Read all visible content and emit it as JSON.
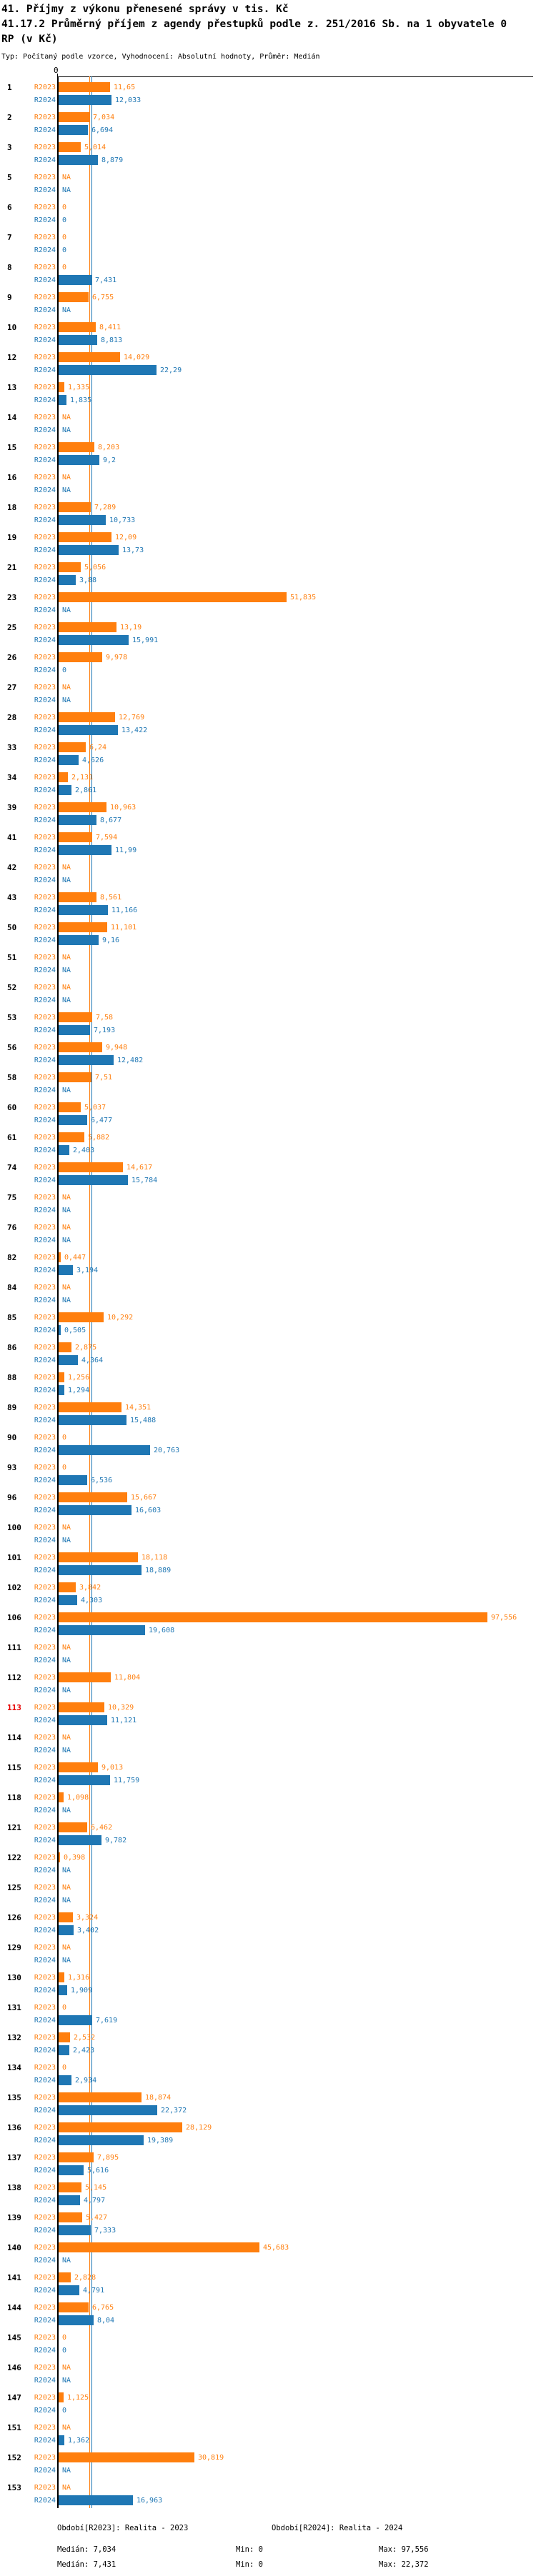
{
  "header": {
    "title_line1": "41. Příjmy z výkonu přenesené správy v tis. Kč",
    "title_line2": "41.17.2 Průměrný příjem z agendy přestupků podle z. 251/2016 Sb. na 1 obyvatele 0",
    "title_line3": "RP (v Kč)",
    "meta_line": "Typ: Počítaný podle vzorce, Vyhodnocení: Absolutní hodnoty, Průměr: Medián"
  },
  "colors": {
    "orange_2023": "#ff7f0e",
    "blue_2024": "#1f77b4",
    "highlight_red": "#e60000",
    "axis_black": "#000000"
  },
  "chart_data": {
    "type": "bar",
    "orientation": "horizontal",
    "title": "41.17.2 Průměrný příjem z agendy přestupků podle z. 251/2016 Sb. na 1 obyvatele 0 RP (v Kč)",
    "decimal_format": "czech-comma",
    "na_text": "NA",
    "axis": {
      "zero_tick_label": "0",
      "range": [
        0,
        108
      ],
      "grid": false
    },
    "legend_position": "bottom",
    "series_meta": [
      {
        "key": "R2023",
        "label": "R2023",
        "color": "#ff7f0e",
        "legend_label": "Období[R2023]: Realita - 2023"
      },
      {
        "key": "R2024",
        "label": "R2024",
        "color": "#1f77b4",
        "legend_label": "Období[R2024]: Realita - 2024"
      }
    ],
    "stats": {
      "R2023": {
        "median_label": "Medián: 7,034",
        "min_label": "Min: 0",
        "max_label": "Max: 97,556",
        "median_value": 7.034
      },
      "R2024": {
        "median_label": "Medián: 7,431",
        "min_label": "Min: 0",
        "max_label": "Max: 22,372",
        "median_value": 7.431
      }
    },
    "groups": [
      {
        "id": "1",
        "R2023": "11,65",
        "R2024": "12,033"
      },
      {
        "id": "2",
        "R2023": "7,034",
        "R2024": "6,694"
      },
      {
        "id": "3",
        "R2023": "5,014",
        "R2024": "8,879"
      },
      {
        "id": "5",
        "R2023": "NA",
        "R2024": "NA"
      },
      {
        "id": "6",
        "R2023": "0",
        "R2024": "0"
      },
      {
        "id": "7",
        "R2023": "0",
        "R2024": "0"
      },
      {
        "id": "8",
        "R2023": "0",
        "R2024": "7,431"
      },
      {
        "id": "9",
        "R2023": "6,755",
        "R2024": "NA"
      },
      {
        "id": "10",
        "R2023": "8,411",
        "R2024": "8,813"
      },
      {
        "id": "12",
        "R2023": "14,029",
        "R2024": "22,29"
      },
      {
        "id": "13",
        "R2023": "1,335",
        "R2024": "1,835"
      },
      {
        "id": "14",
        "R2023": "NA",
        "R2024": "NA"
      },
      {
        "id": "15",
        "R2023": "8,203",
        "R2024": "9,2"
      },
      {
        "id": "16",
        "R2023": "NA",
        "R2024": "NA"
      },
      {
        "id": "18",
        "R2023": "7,289",
        "R2024": "10,733"
      },
      {
        "id": "19",
        "R2023": "12,09",
        "R2024": "13,73"
      },
      {
        "id": "21",
        "R2023": "5,056",
        "R2024": "3,88"
      },
      {
        "id": "23",
        "R2023": "51,835",
        "R2024": "NA"
      },
      {
        "id": "25",
        "R2023": "13,19",
        "R2024": "15,991"
      },
      {
        "id": "26",
        "R2023": "9,978",
        "R2024": "0"
      },
      {
        "id": "27",
        "R2023": "NA",
        "R2024": "NA"
      },
      {
        "id": "28",
        "R2023": "12,769",
        "R2024": "13,422"
      },
      {
        "id": "33",
        "R2023": "6,24",
        "R2024": "4,626"
      },
      {
        "id": "34",
        "R2023": "2,131",
        "R2024": "2,861"
      },
      {
        "id": "39",
        "R2023": "10,963",
        "R2024": "8,677"
      },
      {
        "id": "41",
        "R2023": "7,594",
        "R2024": "11,99"
      },
      {
        "id": "42",
        "R2023": "NA",
        "R2024": "NA"
      },
      {
        "id": "43",
        "R2023": "8,561",
        "R2024": "11,166"
      },
      {
        "id": "50",
        "R2023": "11,101",
        "R2024": "9,16"
      },
      {
        "id": "51",
        "R2023": "NA",
        "R2024": "NA"
      },
      {
        "id": "52",
        "R2023": "NA",
        "R2024": "NA"
      },
      {
        "id": "53",
        "R2023": "7,58",
        "R2024": "7,193"
      },
      {
        "id": "56",
        "R2023": "9,948",
        "R2024": "12,482"
      },
      {
        "id": "58",
        "R2023": "7,51",
        "R2024": "NA"
      },
      {
        "id": "60",
        "R2023": "5,037",
        "R2024": "6,477"
      },
      {
        "id": "61",
        "R2023": "5,882",
        "R2024": "2,403"
      },
      {
        "id": "74",
        "R2023": "14,617",
        "R2024": "15,784"
      },
      {
        "id": "75",
        "R2023": "NA",
        "R2024": "NA"
      },
      {
        "id": "76",
        "R2023": "NA",
        "R2024": "NA"
      },
      {
        "id": "82",
        "R2023": "0,447",
        "R2024": "3,194"
      },
      {
        "id": "84",
        "R2023": "NA",
        "R2024": "NA"
      },
      {
        "id": "85",
        "R2023": "10,292",
        "R2024": "0,505"
      },
      {
        "id": "86",
        "R2023": "2,875",
        "R2024": "4,364"
      },
      {
        "id": "88",
        "R2023": "1,256",
        "R2024": "1,294"
      },
      {
        "id": "89",
        "R2023": "14,351",
        "R2024": "15,488"
      },
      {
        "id": "90",
        "R2023": "0",
        "R2024": "20,763"
      },
      {
        "id": "93",
        "R2023": "0",
        "R2024": "6,536"
      },
      {
        "id": "96",
        "R2023": "15,667",
        "R2024": "16,603"
      },
      {
        "id": "100",
        "R2023": "NA",
        "R2024": "NA"
      },
      {
        "id": "101",
        "R2023": "18,118",
        "R2024": "18,889"
      },
      {
        "id": "102",
        "R2023": "3,842",
        "R2024": "4,303"
      },
      {
        "id": "106",
        "R2023": "97,556",
        "R2024": "19,608"
      },
      {
        "id": "111",
        "R2023": "NA",
        "R2024": "NA"
      },
      {
        "id": "112",
        "R2023": "11,804",
        "R2024": "NA"
      },
      {
        "id": "113",
        "R2023": "10,329",
        "R2024": "11,121",
        "highlight": true
      },
      {
        "id": "114",
        "R2023": "NA",
        "R2024": "NA"
      },
      {
        "id": "115",
        "R2023": "9,013",
        "R2024": "11,759"
      },
      {
        "id": "118",
        "R2023": "1,098",
        "R2024": "NA"
      },
      {
        "id": "121",
        "R2023": "6,462",
        "R2024": "9,782"
      },
      {
        "id": "122",
        "R2023": "0,398",
        "R2024": "NA"
      },
      {
        "id": "125",
        "R2023": "NA",
        "R2024": "NA"
      },
      {
        "id": "126",
        "R2023": "3,324",
        "R2024": "3,402"
      },
      {
        "id": "129",
        "R2023": "NA",
        "R2024": "NA"
      },
      {
        "id": "130",
        "R2023": "1,316",
        "R2024": "1,909"
      },
      {
        "id": "131",
        "R2023": "0",
        "R2024": "7,619"
      },
      {
        "id": "132",
        "R2023": "2,532",
        "R2024": "2,423"
      },
      {
        "id": "134",
        "R2023": "0",
        "R2024": "2,934"
      },
      {
        "id": "135",
        "R2023": "18,874",
        "R2024": "22,372"
      },
      {
        "id": "136",
        "R2023": "28,129",
        "R2024": "19,389"
      },
      {
        "id": "137",
        "R2023": "7,895",
        "R2024": "5,616"
      },
      {
        "id": "138",
        "R2023": "5,145",
        "R2024": "4,797"
      },
      {
        "id": "139",
        "R2023": "5,427",
        "R2024": "7,333"
      },
      {
        "id": "140",
        "R2023": "45,683",
        "R2024": "NA"
      },
      {
        "id": "141",
        "R2023": "2,828",
        "R2024": "4,791"
      },
      {
        "id": "144",
        "R2023": "6,765",
        "R2024": "8,04"
      },
      {
        "id": "145",
        "R2023": "0",
        "R2024": "0"
      },
      {
        "id": "146",
        "R2023": "NA",
        "R2024": "NA"
      },
      {
        "id": "147",
        "R2023": "1,125",
        "R2024": "0"
      },
      {
        "id": "151",
        "R2023": "NA",
        "R2024": "1,362"
      },
      {
        "id": "152",
        "R2023": "30,819",
        "R2024": "NA"
      },
      {
        "id": "153",
        "R2023": "NA",
        "R2024": "16,963"
      }
    ]
  }
}
